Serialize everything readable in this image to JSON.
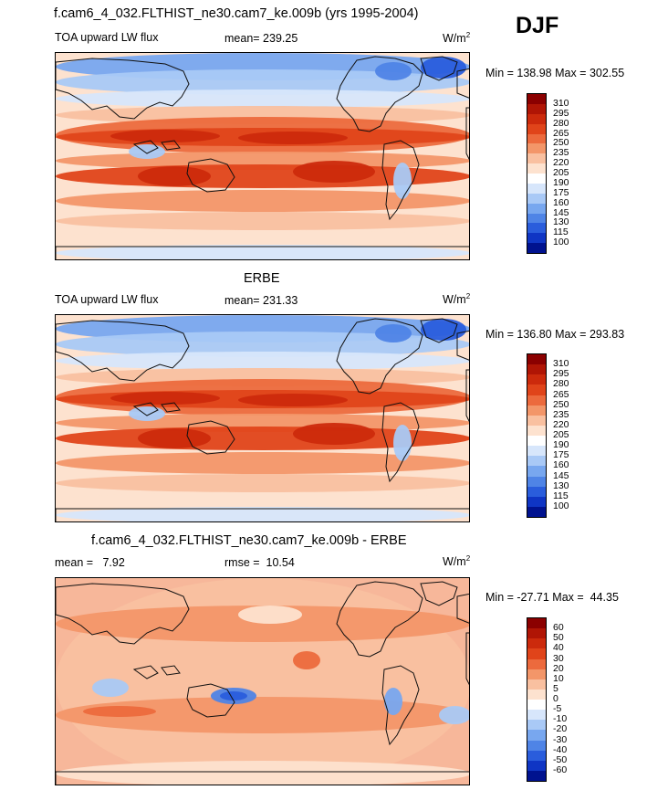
{
  "season": "DJF",
  "panels": [
    {
      "title": "f.cam6_4_032.FLTHIST_ne30.cam7_ke.009b (yrs 1995-2004)",
      "left_label": "TOA upward LW flux",
      "center_label": "mean= 239.25",
      "units": "W/m",
      "units_exp": "2",
      "minmax": "Min = 138.98 Max = 302.55",
      "levels": [
        "310",
        "295",
        "280",
        "265",
        "250",
        "235",
        "220",
        "205",
        "190",
        "175",
        "160",
        "145",
        "130",
        "115",
        "100"
      ],
      "colors": [
        "#8b0000",
        "#b01505",
        "#cc2a0c",
        "#e0441a",
        "#ec6a3d",
        "#f39669",
        "#f9c0a0",
        "#fde2cf",
        "#ffffff",
        "#d7e6fb",
        "#a9c9f6",
        "#78a7ef",
        "#4f84e6",
        "#2a5ddc",
        "#0f35c4",
        "#00128f"
      ]
    },
    {
      "title": "ERBE",
      "left_label": "TOA upward LW flux",
      "center_label": "mean= 231.33",
      "units": "W/m",
      "units_exp": "2",
      "minmax": "Min = 136.80 Max = 293.83",
      "levels": [
        "310",
        "295",
        "280",
        "265",
        "250",
        "235",
        "220",
        "205",
        "190",
        "175",
        "160",
        "145",
        "130",
        "115",
        "100"
      ],
      "colors": [
        "#8b0000",
        "#b01505",
        "#cc2a0c",
        "#e0441a",
        "#ec6a3d",
        "#f39669",
        "#f9c0a0",
        "#fde2cf",
        "#ffffff",
        "#d7e6fb",
        "#a9c9f6",
        "#78a7ef",
        "#4f84e6",
        "#2a5ddc",
        "#0f35c4",
        "#00128f"
      ]
    },
    {
      "title": "f.cam6_4_032.FLTHIST_ne30.cam7_ke.009b - ERBE",
      "left_label": "mean =   7.92",
      "center_label": "rmse =  10.54",
      "units": "W/m",
      "units_exp": "2",
      "minmax": "Min = -27.71 Max =  44.35",
      "levels": [
        "60",
        "50",
        "40",
        "30",
        "20",
        "10",
        "5",
        "0",
        "-5",
        "-10",
        "-20",
        "-30",
        "-40",
        "-50",
        "-60"
      ],
      "colors": [
        "#8b0000",
        "#b01505",
        "#cc2a0c",
        "#e0441a",
        "#ec6a3d",
        "#f39669",
        "#f9c0a0",
        "#fde2cf",
        "#ffffff",
        "#d7e6fb",
        "#a9c9f6",
        "#78a7ef",
        "#4f84e6",
        "#2a5ddc",
        "#0f35c4",
        "#00128f"
      ]
    }
  ]
}
